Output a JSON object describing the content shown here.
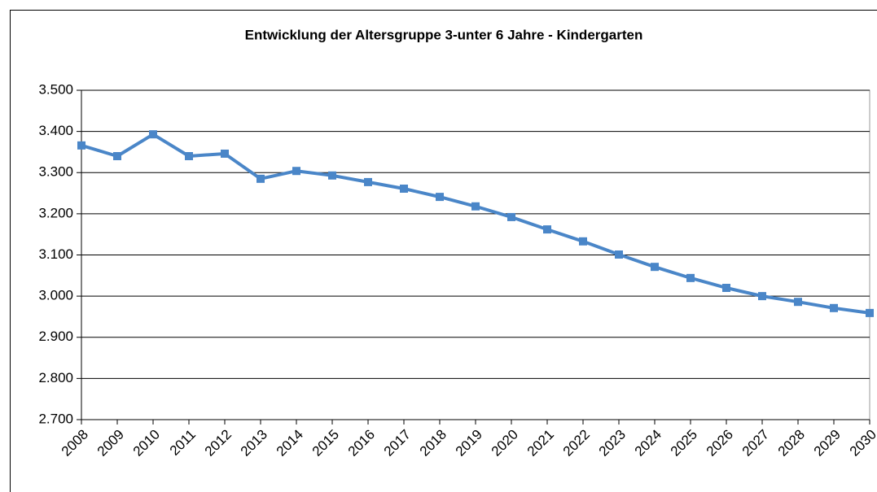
{
  "chart_data": {
    "type": "line",
    "title": "Entwicklung der Altersgruppe 3-unter 6 Jahre - Kindergarten",
    "categories": [
      "2008",
      "2009",
      "2010",
      "2011",
      "2012",
      "2013",
      "2014",
      "2015",
      "2016",
      "2017",
      "2018",
      "2019",
      "2020",
      "2021",
      "2022",
      "2023",
      "2024",
      "2025",
      "2026",
      "2027",
      "2028",
      "2029",
      "2030"
    ],
    "values": [
      3366,
      3340,
      3393,
      3340,
      3346,
      3285,
      3304,
      3293,
      3277,
      3261,
      3241,
      3218,
      3192,
      3162,
      3133,
      3101,
      3071,
      3044,
      3020,
      3000,
      2986,
      2971,
      2959
    ],
    "color": "#4a86c8",
    "ylim": [
      2700,
      3500
    ],
    "yticks": [
      {
        "value": 2700,
        "label": "2.700"
      },
      {
        "value": 2800,
        "label": "2.800"
      },
      {
        "value": 2900,
        "label": "2.900"
      },
      {
        "value": 3000,
        "label": "3.000"
      },
      {
        "value": 3100,
        "label": "3.100"
      },
      {
        "value": 3200,
        "label": "3.200"
      },
      {
        "value": 3300,
        "label": "3.300"
      },
      {
        "value": 3400,
        "label": "3.400"
      },
      {
        "value": 3500,
        "label": "3.500"
      }
    ],
    "grid": true
  }
}
